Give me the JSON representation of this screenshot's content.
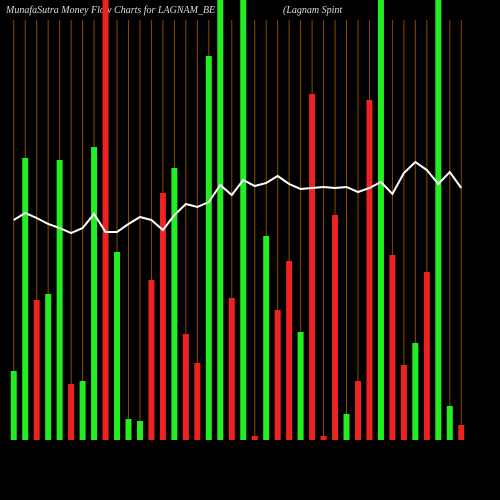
{
  "chart_data": {
    "type": "bar",
    "title": "MunafaSutra  Money Flow  Charts for LAGNAM_BE",
    "subtitle": "(Lagnam Spint",
    "categories": [
      null,
      null,
      null,
      null,
      null,
      null,
      null,
      null,
      null,
      null,
      null,
      null,
      null,
      null,
      null,
      null,
      null,
      null,
      null,
      null,
      null,
      null,
      null,
      null,
      null,
      null,
      null,
      null,
      null,
      null,
      null,
      null,
      null,
      null,
      null,
      null,
      null,
      null,
      null,
      null
    ],
    "values": [
      69,
      282,
      140,
      146,
      280,
      56,
      59,
      293,
      450,
      188,
      21,
      19,
      160,
      247,
      272,
      106,
      77,
      384,
      450,
      142,
      450,
      4,
      204,
      130,
      179,
      108,
      346,
      4,
      225,
      26,
      59,
      340,
      450,
      185,
      75,
      97,
      168,
      450,
      34,
      15
    ],
    "bar_colors": [
      "#22ee22",
      "#22ee22",
      "#ee2222",
      "#22ee22",
      "#22ee22",
      "#ee2222",
      "#22ee22",
      "#22ee22",
      "#ee2222",
      "#22ee22",
      "#22ee22",
      "#22ee22",
      "#ee2222",
      "#ee2222",
      "#22ee22",
      "#ee2222",
      "#ee2222",
      "#22ee22",
      "#22ee22",
      "#ee2222",
      "#22ee22",
      "#ee2222",
      "#22ee22",
      "#ee2222",
      "#ee2222",
      "#22ee22",
      "#ee2222",
      "#ee2222",
      "#ee2222",
      "#22ee22",
      "#ee2222",
      "#ee2222",
      "#22ee22",
      "#ee2222",
      "#ee2222",
      "#22ee22",
      "#ee2222",
      "#22ee22",
      "#22ee22",
      "#ee2222"
    ],
    "line_values": [
      220,
      227,
      222,
      216,
      212,
      207,
      212,
      226,
      208,
      208,
      216,
      223,
      220,
      210,
      225,
      236,
      233,
      238,
      255,
      245,
      260,
      254,
      257,
      264,
      256,
      251,
      252,
      253,
      252,
      253,
      248,
      252,
      258,
      246,
      267,
      278,
      270,
      256,
      268,
      252
    ],
    "line_color": "#ffffff",
    "grid_color": "#8a4a00",
    "ylim": [
      0,
      440
    ],
    "grid": true
  }
}
